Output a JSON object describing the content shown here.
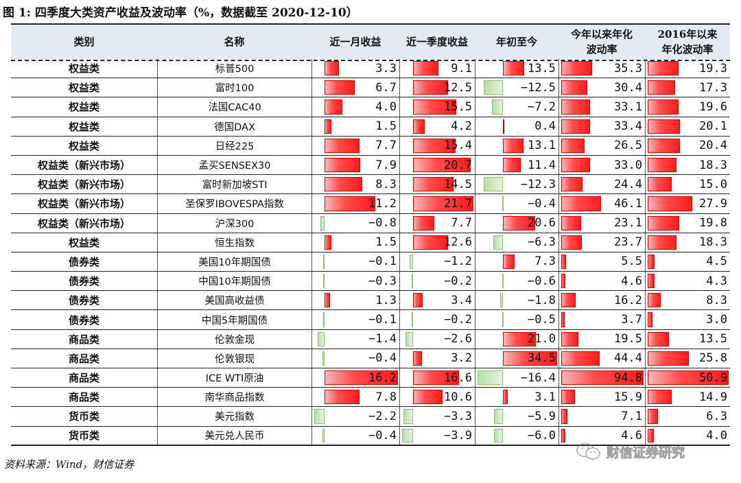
{
  "figure": {
    "title": "图 1:  四季度大类资产收益及波动率（%，数据截至 2020-12-10）"
  },
  "columns": [
    {
      "key": "category",
      "label": "类别"
    },
    {
      "key": "name",
      "label": "名称"
    },
    {
      "key": "m1",
      "label": "近一月收益"
    },
    {
      "key": "q",
      "label": "近一季度收益"
    },
    {
      "key": "ytd",
      "label": "年初至今"
    },
    {
      "key": "vol_ytd",
      "label": "今年以来年化波动率"
    },
    {
      "key": "vol_2016",
      "label": "2016年以来年化波动率"
    }
  ],
  "rows": [
    {
      "category": "权益类",
      "name": "标普500",
      "values": [
        3.3,
        9.1,
        13.5,
        35.3,
        19.3
      ],
      "display": [
        "3.3",
        "9.1",
        "13.5",
        "35.3",
        "19.3"
      ]
    },
    {
      "category": "权益类",
      "name": "富时100",
      "values": [
        6.7,
        12.5,
        -12.5,
        30.4,
        17.3
      ],
      "display": [
        "6.7",
        "12.5",
        "−12.5",
        "30.4",
        "17.3"
      ]
    },
    {
      "category": "权益类",
      "name": "法国CAC40",
      "values": [
        4.0,
        15.5,
        -7.2,
        33.1,
        19.6
      ],
      "display": [
        "4.0",
        "15.5",
        "−7.2",
        "33.1",
        "19.6"
      ]
    },
    {
      "category": "权益类",
      "name": "德国DAX",
      "values": [
        1.5,
        4.2,
        0.4,
        33.4,
        20.1
      ],
      "display": [
        "1.5",
        "4.2",
        "0.4",
        "33.4",
        "20.1"
      ]
    },
    {
      "category": "权益类",
      "name": "日经225",
      "values": [
        7.7,
        15.4,
        13.1,
        26.5,
        20.4
      ],
      "display": [
        "7.7",
        "15.4",
        "13.1",
        "26.5",
        "20.4"
      ]
    },
    {
      "category": "权益类（新兴市场）",
      "name": "孟买SENSEX30",
      "values": [
        7.9,
        20.7,
        11.4,
        33.0,
        18.3
      ],
      "display": [
        "7.9",
        "20.7",
        "11.4",
        "33.0",
        "18.3"
      ]
    },
    {
      "category": "权益类（新兴市场）",
      "name": "富时新加坡STI",
      "values": [
        8.3,
        14.5,
        -12.3,
        24.4,
        15.0
      ],
      "display": [
        "8.3",
        "14.5",
        "−12.3",
        "24.4",
        "15.0"
      ]
    },
    {
      "category": "权益类（新兴市场）",
      "name": "圣保罗IBOVESPA指数",
      "values": [
        11.2,
        21.7,
        -0.4,
        46.1,
        27.9
      ],
      "display": [
        "11.2",
        "21.7",
        "−0.4",
        "46.1",
        "27.9"
      ]
    },
    {
      "category": "权益类（新兴市场）",
      "name": "沪深300",
      "values": [
        -0.8,
        7.7,
        20.6,
        23.1,
        19.8
      ],
      "display": [
        "−0.8",
        "7.7",
        "20.6",
        "23.1",
        "19.8"
      ]
    },
    {
      "category": "权益类",
      "name": "恒生指数",
      "values": [
        1.5,
        12.6,
        -6.3,
        23.7,
        18.3
      ],
      "display": [
        "1.5",
        "12.6",
        "−6.3",
        "23.7",
        "18.3"
      ]
    },
    {
      "category": "债券类",
      "name": "美国10年期国债",
      "values": [
        -0.1,
        -1.2,
        7.3,
        5.5,
        4.5
      ],
      "display": [
        "−0.1",
        "−1.2",
        "7.3",
        "5.5",
        "4.5"
      ]
    },
    {
      "category": "债券类",
      "name": "中国10年期国债",
      "values": [
        -0.3,
        -0.2,
        -0.6,
        4.6,
        4.3
      ],
      "display": [
        "−0.3",
        "−0.2",
        "−0.6",
        "4.6",
        "4.3"
      ]
    },
    {
      "category": "债券类",
      "name": "美国高收益债",
      "values": [
        1.3,
        3.4,
        -1.8,
        16.2,
        8.3
      ],
      "display": [
        "1.3",
        "3.4",
        "−1.8",
        "16.2",
        "8.3"
      ]
    },
    {
      "category": "债券类",
      "name": "中国5年期国债",
      "values": [
        -0.1,
        -0.2,
        -0.5,
        3.7,
        3.0
      ],
      "display": [
        "−0.1",
        "−0.2",
        "−0.5",
        "3.7",
        "3.0"
      ]
    },
    {
      "category": "商品类",
      "name": "伦敦金现",
      "values": [
        -1.4,
        -2.6,
        21.0,
        19.5,
        13.5
      ],
      "display": [
        "−1.4",
        "−2.6",
        "21.0",
        "19.5",
        "13.5"
      ]
    },
    {
      "category": "商品类",
      "name": "伦敦银现",
      "values": [
        -0.4,
        3.2,
        34.5,
        44.4,
        25.8
      ],
      "display": [
        "−0.4",
        "3.2",
        "34.5",
        "44.4",
        "25.8"
      ]
    },
    {
      "category": "商品类",
      "name": "ICE WTI原油",
      "values": [
        16.2,
        16.6,
        -16.4,
        94.8,
        50.9
      ],
      "display": [
        "16.2",
        "16.6",
        "−16.4",
        "94.8",
        "50.9"
      ]
    },
    {
      "category": "商品类",
      "name": "南华商品指数",
      "values": [
        7.8,
        10.6,
        3.1,
        15.9,
        14.9
      ],
      "display": [
        "7.8",
        "10.6",
        "3.1",
        "15.9",
        "14.9"
      ]
    },
    {
      "category": "货币类",
      "name": "美元指数",
      "values": [
        -2.2,
        -3.3,
        -5.9,
        7.1,
        6.3
      ],
      "display": [
        "−2.2",
        "−3.3",
        "−5.9",
        "7.1",
        "6.3"
      ]
    },
    {
      "category": "货币类",
      "name": "美元兑人民币",
      "values": [
        -0.4,
        -3.9,
        -6.0,
        4.6,
        4.0
      ],
      "display": [
        "−0.4",
        "−3.9",
        "−6.0",
        "4.6",
        "4.0"
      ]
    }
  ],
  "colors": {
    "positive_bar": "#ff2a2a",
    "negative_bar": "#c6e6b8",
    "header_bg": "#e4eaf4"
  },
  "source": "资料来源：Wind，财信证券",
  "watermark": {
    "text": "财信证券研究",
    "icon": "wechat-icon"
  }
}
